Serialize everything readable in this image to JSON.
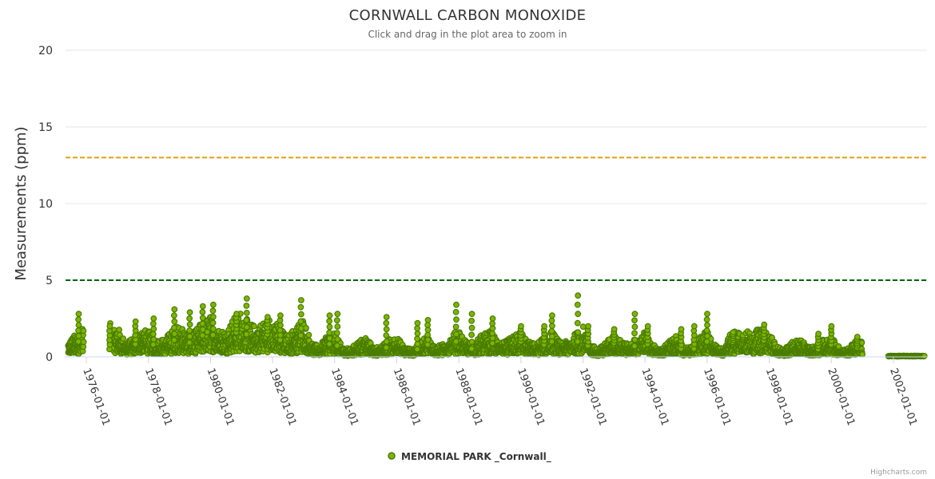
{
  "chart_data": {
    "type": "scatter",
    "title": "CORNWALL CARBON MONOXIDE",
    "subtitle": "Click and drag in the plot area to zoom in",
    "ylabel": "Measurements (ppm)",
    "ylim": [
      0,
      20
    ],
    "yticks": [
      0,
      5,
      10,
      15,
      20
    ],
    "xlim": [
      "1975-05-01",
      "2003-02-01"
    ],
    "xticks": [
      "1976-01-01",
      "1978-01-01",
      "1980-01-01",
      "1982-01-01",
      "1984-01-01",
      "1986-01-01",
      "1988-01-01",
      "1990-01-01",
      "1992-01-01",
      "1994-01-01",
      "1996-01-01",
      "1998-01-01",
      "2000-01-01",
      "2002-01-01"
    ],
    "grid": true,
    "legend_position": "bottom-center",
    "plot_lines": [
      {
        "value": 13,
        "color": "#e0a010",
        "style": "dashed"
      },
      {
        "value": 5,
        "color": "#006400",
        "style": "dashed"
      }
    ],
    "series": [
      {
        "name": "MEMORIAL PARK _Cornwall_",
        "color": "#7db500",
        "outline": "#4a7c00",
        "profile": [
          [
            "1975-06-01",
            0.6
          ],
          [
            "1975-09-01",
            0.9
          ],
          [
            "1975-12-01",
            1.2
          ],
          [
            "1976-07-01",
            null
          ],
          [
            "1976-10-01",
            1.3
          ],
          [
            "1977-01-01",
            1.2
          ],
          [
            "1977-04-01",
            0.6
          ],
          [
            "1977-07-01",
            0.7
          ],
          [
            "1977-10-01",
            1.1
          ],
          [
            "1978-01-01",
            1.0
          ],
          [
            "1978-04-01",
            0.7
          ],
          [
            "1978-07-01",
            0.7
          ],
          [
            "1978-10-01",
            1.0
          ],
          [
            "1979-01-01",
            1.3
          ],
          [
            "1979-04-01",
            0.9
          ],
          [
            "1979-07-01",
            1.0
          ],
          [
            "1979-10-01",
            1.4
          ],
          [
            "1980-01-01",
            1.6
          ],
          [
            "1980-04-01",
            1.1
          ],
          [
            "1980-07-01",
            1.0
          ],
          [
            "1980-10-01",
            1.5
          ],
          [
            "1981-01-01",
            1.8
          ],
          [
            "1981-04-01",
            1.3
          ],
          [
            "1981-07-01",
            1.2
          ],
          [
            "1981-10-01",
            1.4
          ],
          [
            "1982-01-01",
            1.6
          ],
          [
            "1982-04-01",
            1.1
          ],
          [
            "1982-07-01",
            0.8
          ],
          [
            "1982-10-01",
            1.2
          ],
          [
            "1983-01-01",
            1.5
          ],
          [
            "1983-04-01",
            0.6
          ],
          [
            "1983-07-01",
            0.4
          ],
          [
            "1983-10-01",
            0.8
          ],
          [
            "1984-01-01",
            0.9
          ],
          [
            "1984-04-01",
            0.4
          ],
          [
            "1984-07-01",
            0.3
          ],
          [
            "1984-10-01",
            0.6
          ],
          [
            "1985-01-01",
            0.8
          ],
          [
            "1985-04-01",
            0.4
          ],
          [
            "1985-07-01",
            0.4
          ],
          [
            "1985-10-01",
            0.7
          ],
          [
            "1986-01-01",
            0.8
          ],
          [
            "1986-04-01",
            0.4
          ],
          [
            "1986-07-01",
            0.3
          ],
          [
            "1986-10-01",
            0.6
          ],
          [
            "1987-01-01",
            0.8
          ],
          [
            "1987-04-01",
            0.4
          ],
          [
            "1987-07-01",
            0.5
          ],
          [
            "1987-10-01",
            0.8
          ],
          [
            "1988-01-01",
            1.1
          ],
          [
            "1988-04-01",
            0.6
          ],
          [
            "1988-07-01",
            0.5
          ],
          [
            "1988-10-01",
            0.9
          ],
          [
            "1989-01-01",
            1.0
          ],
          [
            "1989-04-01",
            0.7
          ],
          [
            "1989-07-01",
            0.6
          ],
          [
            "1989-10-01",
            0.8
          ],
          [
            "1990-01-01",
            1.0
          ],
          [
            "1990-04-01",
            0.6
          ],
          [
            "1990-07-01",
            0.5
          ],
          [
            "1990-10-01",
            0.8
          ],
          [
            "1991-01-01",
            1.0
          ],
          [
            "1991-04-01",
            0.6
          ],
          [
            "1991-07-01",
            0.6
          ],
          [
            "1991-10-01",
            0.9
          ],
          [
            "1992-01-01",
            1.2
          ],
          [
            "1992-04-01",
            0.5
          ],
          [
            "1992-07-01",
            0.3
          ],
          [
            "1992-10-01",
            0.6
          ],
          [
            "1993-01-01",
            0.9
          ],
          [
            "1993-04-01",
            0.6
          ],
          [
            "1993-07-01",
            0.5
          ],
          [
            "1993-10-01",
            0.8
          ],
          [
            "1994-01-01",
            1.0
          ],
          [
            "1994-04-01",
            0.5
          ],
          [
            "1994-07-01",
            0.3
          ],
          [
            "1994-10-01",
            0.6
          ],
          [
            "1995-01-01",
            0.8
          ],
          [
            "1995-04-01",
            0.4
          ],
          [
            "1995-07-01",
            0.4
          ],
          [
            "1995-10-01",
            0.8
          ],
          [
            "1996-01-01",
            1.0
          ],
          [
            "1996-04-01",
            0.5
          ],
          [
            "1996-07-01",
            0.3
          ],
          [
            "1996-10-01",
            0.9
          ],
          [
            "1997-01-01",
            1.1
          ],
          [
            "1997-04-01",
            1.0
          ],
          [
            "1997-07-01",
            1.0
          ],
          [
            "1997-10-01",
            1.1
          ],
          [
            "1998-01-01",
            1.0
          ],
          [
            "1998-04-01",
            0.4
          ],
          [
            "1998-07-01",
            0.3
          ],
          [
            "1998-10-01",
            0.6
          ],
          [
            "1999-01-01",
            0.7
          ],
          [
            "1999-04-01",
            0.4
          ],
          [
            "1999-07-01",
            0.4
          ],
          [
            "1999-10-01",
            0.7
          ],
          [
            "2000-01-01",
            0.8
          ],
          [
            "2000-04-01",
            0.4
          ],
          [
            "2000-07-01",
            0.3
          ],
          [
            "2000-10-01",
            0.6
          ],
          [
            "2001-01-01",
            0.6
          ],
          [
            "2001-04-01",
            null
          ],
          [
            "2001-11-01",
            0.05
          ],
          [
            "2002-06-01",
            0.05
          ],
          [
            "2003-01-01",
            0.05
          ]
        ],
        "peaks": [
          [
            "1975-10-01",
            2.8
          ],
          [
            "1976-10-01",
            2.0
          ],
          [
            "1977-08-01",
            2.3
          ],
          [
            "1978-03-01",
            2.5
          ],
          [
            "1978-11-01",
            3.1
          ],
          [
            "1979-05-01",
            2.9
          ],
          [
            "1979-10-01",
            3.3
          ],
          [
            "1980-02-01",
            3.4
          ],
          [
            "1980-11-01",
            2.8
          ],
          [
            "1981-03-01",
            3.8
          ],
          [
            "1981-11-01",
            2.6
          ],
          [
            "1982-04-01",
            2.7
          ],
          [
            "1982-12-01",
            3.7
          ],
          [
            "1983-11-01",
            2.7
          ],
          [
            "1984-02-01",
            2.8
          ],
          [
            "1985-09-01",
            2.6
          ],
          [
            "1986-09-01",
            2.2
          ],
          [
            "1987-01-01",
            2.4
          ],
          [
            "1987-12-01",
            3.4
          ],
          [
            "1988-06-01",
            2.8
          ],
          [
            "1989-02-01",
            2.5
          ],
          [
            "1990-01-01",
            2.0
          ],
          [
            "1990-10-01",
            2.0
          ],
          [
            "1991-01-01",
            2.7
          ],
          [
            "1991-11-01",
            4.0
          ],
          [
            "1992-03-01",
            2.0
          ],
          [
            "1993-01-01",
            1.8
          ],
          [
            "1993-09-01",
            2.8
          ],
          [
            "1994-02-01",
            2.0
          ],
          [
            "1995-03-01",
            1.8
          ],
          [
            "1995-08-01",
            2.0
          ],
          [
            "1996-01-01",
            2.8
          ],
          [
            "1996-11-01",
            1.6
          ],
          [
            "1997-11-01",
            2.1
          ],
          [
            "1999-08-01",
            1.5
          ],
          [
            "2000-01-01",
            2.0
          ],
          [
            "2000-11-01",
            1.3
          ]
        ]
      }
    ]
  },
  "credits": "Highcharts.com"
}
